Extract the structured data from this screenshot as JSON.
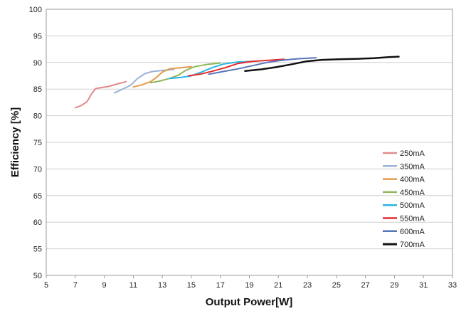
{
  "chart_data": {
    "type": "line",
    "title": "",
    "xlabel": "Output Power[W]",
    "ylabel": "Efficiency [%]",
    "xlim": [
      5,
      33
    ],
    "ylim": [
      50,
      100
    ],
    "xticks": [
      5,
      7,
      9,
      11,
      13,
      15,
      17,
      19,
      21,
      23,
      25,
      27,
      29,
      31,
      33
    ],
    "yticks": [
      50,
      55,
      60,
      65,
      70,
      75,
      80,
      85,
      90,
      95,
      100
    ],
    "grid": "horizontal",
    "legend_position": "right-lower",
    "series": [
      {
        "name": "250mA",
        "color": "#e08a8a",
        "stroke_width": 2,
        "points": [
          [
            7.0,
            81.5
          ],
          [
            7.4,
            81.9
          ],
          [
            7.8,
            82.6
          ],
          [
            8.1,
            84.0
          ],
          [
            8.4,
            85.1
          ],
          [
            8.8,
            85.3
          ],
          [
            9.3,
            85.5
          ],
          [
            9.8,
            85.9
          ],
          [
            10.5,
            86.4
          ]
        ]
      },
      {
        "name": "350mA",
        "color": "#9bb3d9",
        "stroke_width": 2,
        "points": [
          [
            9.7,
            84.3
          ],
          [
            10.2,
            84.9
          ],
          [
            10.8,
            85.7
          ],
          [
            11.3,
            87.0
          ],
          [
            11.8,
            87.9
          ],
          [
            12.3,
            88.3
          ],
          [
            13.0,
            88.5
          ],
          [
            13.8,
            88.7
          ]
        ]
      },
      {
        "name": "400mA",
        "color": "#e39a4c",
        "stroke_width": 2,
        "points": [
          [
            11.0,
            85.4
          ],
          [
            11.6,
            85.8
          ],
          [
            12.2,
            86.4
          ],
          [
            12.6,
            87.2
          ],
          [
            13.0,
            88.2
          ],
          [
            13.5,
            88.8
          ],
          [
            14.2,
            89.0
          ],
          [
            15.0,
            89.2
          ]
        ]
      },
      {
        "name": "450mA",
        "color": "#8fb65a",
        "stroke_width": 2,
        "points": [
          [
            12.2,
            86.2
          ],
          [
            12.8,
            86.5
          ],
          [
            13.5,
            87.0
          ],
          [
            14.1,
            87.6
          ],
          [
            14.6,
            88.5
          ],
          [
            15.2,
            89.2
          ],
          [
            16.0,
            89.6
          ],
          [
            17.0,
            89.9
          ]
        ]
      },
      {
        "name": "500mA",
        "color": "#29b5e6",
        "stroke_width": 2,
        "points": [
          [
            13.5,
            87.0
          ],
          [
            14.3,
            87.2
          ],
          [
            15.0,
            87.5
          ],
          [
            15.7,
            88.2
          ],
          [
            16.4,
            89.0
          ],
          [
            17.2,
            89.7
          ],
          [
            18.2,
            90.1
          ],
          [
            19.2,
            90.2
          ]
        ]
      },
      {
        "name": "550mA",
        "color": "#e52b2b",
        "stroke_width": 2,
        "points": [
          [
            14.8,
            87.5
          ],
          [
            15.6,
            87.8
          ],
          [
            16.5,
            88.4
          ],
          [
            17.3,
            89.0
          ],
          [
            18.2,
            89.8
          ],
          [
            19.2,
            90.2
          ],
          [
            20.3,
            90.4
          ],
          [
            21.4,
            90.6
          ]
        ]
      },
      {
        "name": "600mA",
        "color": "#5774b8",
        "stroke_width": 2,
        "points": [
          [
            16.2,
            87.8
          ],
          [
            17.2,
            88.3
          ],
          [
            18.2,
            88.8
          ],
          [
            19.2,
            89.4
          ],
          [
            20.2,
            90.0
          ],
          [
            21.2,
            90.4
          ],
          [
            22.3,
            90.7
          ],
          [
            23.6,
            90.9
          ]
        ]
      },
      {
        "name": "700mA",
        "color": "#111111",
        "stroke_width": 2.5,
        "points": [
          [
            18.7,
            88.4
          ],
          [
            19.8,
            88.7
          ],
          [
            20.8,
            89.1
          ],
          [
            21.8,
            89.6
          ],
          [
            22.9,
            90.2
          ],
          [
            24.0,
            90.5
          ],
          [
            25.2,
            90.6
          ],
          [
            26.5,
            90.7
          ],
          [
            27.6,
            90.8
          ],
          [
            28.6,
            91.0
          ],
          [
            29.3,
            91.1
          ]
        ]
      }
    ]
  }
}
